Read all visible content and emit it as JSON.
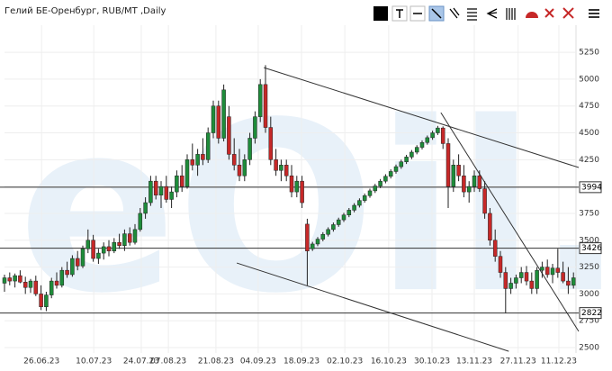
{
  "chart_data": {
    "type": "candlestick",
    "title": "Гелий БЕ-Оренбург, RUB/MT ,Daily",
    "watermark": "eOil.ru",
    "up_color": "#1e8c3a",
    "down_color": "#c62828",
    "grid": true,
    "ylim": [
      2450,
      5695
    ],
    "yticks": [
      2500,
      2750,
      3000,
      3250,
      3500,
      3750,
      4000,
      4250,
      4500,
      4750,
      5000,
      5250
    ],
    "xlim": [
      -0.5,
      110
    ],
    "xticks": [
      {
        "value": 7.1,
        "label": "26.06.23"
      },
      {
        "value": 17.1,
        "label": "10.07.23"
      },
      {
        "value": 26.2,
        "label": "24.07.23"
      },
      {
        "value": 31.4,
        "label": "07.08.23"
      },
      {
        "value": 40.5,
        "label": "21.08.23"
      },
      {
        "value": 48.6,
        "label": "04.09.23"
      },
      {
        "value": 56.9,
        "label": "18.09.23"
      },
      {
        "value": 65.2,
        "label": "02.10.23"
      },
      {
        "value": 73.6,
        "label": "16.10.23"
      },
      {
        "value": 81.9,
        "label": "30.10.23"
      },
      {
        "value": 90,
        "label": "13.11.23"
      },
      {
        "value": 98.4,
        "label": "27.11.23"
      },
      {
        "value": 106.2,
        "label": "11.12.23"
      }
    ],
    "levels": [
      3994,
      3426,
      2822
    ],
    "trendlines": [
      [
        [
          49.7,
          5107
        ],
        [
          110,
          4177
        ]
      ],
      [
        [
          83.6,
          4688
        ],
        [
          110,
          2651
        ]
      ],
      [
        [
          44.5,
          3288
        ],
        [
          96.6,
          2466
        ]
      ]
    ],
    "candles": [
      [
        3100,
        3180,
        3020,
        3150
      ],
      [
        3150,
        3200,
        3080,
        3120
      ],
      [
        3120,
        3190,
        3060,
        3170
      ],
      [
        3170,
        3220,
        3100,
        3110
      ],
      [
        3110,
        3160,
        3000,
        3060
      ],
      [
        3060,
        3140,
        3010,
        3120
      ],
      [
        3120,
        3170,
        2980,
        3000
      ],
      [
        3000,
        3080,
        2850,
        2880
      ],
      [
        2880,
        3020,
        2840,
        2990
      ],
      [
        2990,
        3150,
        2960,
        3120
      ],
      [
        3120,
        3200,
        3050,
        3080
      ],
      [
        3080,
        3250,
        3060,
        3220
      ],
      [
        3220,
        3300,
        3150,
        3180
      ],
      [
        3180,
        3360,
        3160,
        3330
      ],
      [
        3330,
        3400,
        3220,
        3260
      ],
      [
        3260,
        3450,
        3240,
        3420
      ],
      [
        3420,
        3600,
        3380,
        3500
      ],
      [
        3500,
        3550,
        3300,
        3330
      ],
      [
        3330,
        3420,
        3280,
        3380
      ],
      [
        3380,
        3480,
        3320,
        3440
      ],
      [
        3440,
        3500,
        3350,
        3400
      ],
      [
        3400,
        3520,
        3380,
        3480
      ],
      [
        3480,
        3560,
        3420,
        3450
      ],
      [
        3450,
        3600,
        3400,
        3560
      ],
      [
        3560,
        3620,
        3450,
        3480
      ],
      [
        3480,
        3650,
        3460,
        3600
      ],
      [
        3600,
        3800,
        3580,
        3750
      ],
      [
        3750,
        3900,
        3700,
        3850
      ],
      [
        3850,
        4100,
        3820,
        4050
      ],
      [
        4050,
        4100,
        3880,
        3920
      ],
      [
        3920,
        4050,
        3800,
        4000
      ],
      [
        4000,
        4100,
        3850,
        3880
      ],
      [
        3880,
        4000,
        3800,
        3950
      ],
      [
        3950,
        4150,
        3900,
        4100
      ],
      [
        4100,
        4200,
        3950,
        4000
      ],
      [
        4000,
        4300,
        3980,
        4250
      ],
      [
        4250,
        4400,
        4150,
        4200
      ],
      [
        4200,
        4350,
        4100,
        4300
      ],
      [
        4300,
        4450,
        4200,
        4250
      ],
      [
        4250,
        4550,
        4220,
        4500
      ],
      [
        4500,
        4800,
        4450,
        4750
      ],
      [
        4750,
        4800,
        4400,
        4450
      ],
      [
        4450,
        4950,
        4420,
        4900
      ],
      [
        4650,
        4750,
        4250,
        4300
      ],
      [
        4300,
        4450,
        4150,
        4200
      ],
      [
        4200,
        4350,
        4050,
        4100
      ],
      [
        4100,
        4300,
        4050,
        4250
      ],
      [
        4250,
        4500,
        4200,
        4450
      ],
      [
        4450,
        4700,
        4400,
        4650
      ],
      [
        4650,
        5000,
        4600,
        4950
      ],
      [
        4950,
        5130,
        4500,
        4550
      ],
      [
        4550,
        4650,
        4200,
        4250
      ],
      [
        4250,
        4350,
        4100,
        4150
      ],
      [
        4150,
        4250,
        4050,
        4200
      ],
      [
        4200,
        4250,
        4050,
        4100
      ],
      [
        4100,
        4200,
        3900,
        3950
      ],
      [
        3950,
        4100,
        3900,
        4050
      ],
      [
        4050,
        4100,
        3800,
        3850
      ],
      [
        3650,
        3700,
        3080,
        3400
      ],
      [
        3420,
        3485,
        3400,
        3465
      ],
      [
        3465,
        3530,
        3445,
        3510
      ],
      [
        3510,
        3575,
        3490,
        3555
      ],
      [
        3555,
        3620,
        3535,
        3600
      ],
      [
        3600,
        3665,
        3580,
        3645
      ],
      [
        3645,
        3710,
        3625,
        3690
      ],
      [
        3690,
        3755,
        3670,
        3735
      ],
      [
        3735,
        3800,
        3715,
        3780
      ],
      [
        3780,
        3845,
        3760,
        3825
      ],
      [
        3825,
        3890,
        3805,
        3870
      ],
      [
        3870,
        3935,
        3850,
        3915
      ],
      [
        3915,
        3980,
        3895,
        3960
      ],
      [
        3960,
        4025,
        3940,
        4005
      ],
      [
        4005,
        4070,
        3985,
        4050
      ],
      [
        4050,
        4115,
        4030,
        4095
      ],
      [
        4095,
        4160,
        4075,
        4140
      ],
      [
        4140,
        4205,
        4120,
        4185
      ],
      [
        4185,
        4250,
        4165,
        4230
      ],
      [
        4230,
        4295,
        4210,
        4275
      ],
      [
        4275,
        4340,
        4255,
        4320
      ],
      [
        4320,
        4385,
        4300,
        4365
      ],
      [
        4365,
        4430,
        4345,
        4410
      ],
      [
        4410,
        4475,
        4390,
        4455
      ],
      [
        4455,
        4520,
        4435,
        4500
      ],
      [
        4500,
        4565,
        4480,
        4545
      ],
      [
        4545,
        4560,
        4350,
        4400
      ],
      [
        4400,
        4450,
        3800,
        4000
      ],
      [
        4000,
        4250,
        3950,
        4200
      ],
      [
        4200,
        4300,
        4050,
        4100
      ],
      [
        4100,
        4200,
        3900,
        3950
      ],
      [
        3950,
        4050,
        3850,
        4000
      ],
      [
        4000,
        4150,
        3950,
        4100
      ],
      [
        4100,
        4150,
        3950,
        3980
      ],
      [
        3980,
        4050,
        3700,
        3750
      ],
      [
        3750,
        3800,
        3450,
        3500
      ],
      [
        3500,
        3600,
        3300,
        3350
      ],
      [
        3350,
        3400,
        3150,
        3200
      ],
      [
        3200,
        3250,
        2822,
        3050
      ],
      [
        3050,
        3150,
        3000,
        3100
      ],
      [
        3100,
        3180,
        3050,
        3150
      ],
      [
        3150,
        3250,
        3100,
        3200
      ],
      [
        3200,
        3260,
        3080,
        3120
      ],
      [
        3120,
        3200,
        3000,
        3050
      ],
      [
        3050,
        3250,
        3000,
        3220
      ],
      [
        3220,
        3300,
        3150,
        3250
      ],
      [
        3250,
        3320,
        3150,
        3180
      ],
      [
        3180,
        3280,
        3100,
        3240
      ],
      [
        3240,
        3420,
        3150,
        3200
      ],
      [
        3200,
        3300,
        3100,
        3120
      ],
      [
        3120,
        3250,
        3000,
        3080
      ],
      [
        3080,
        3200,
        3050,
        3150
      ]
    ]
  }
}
